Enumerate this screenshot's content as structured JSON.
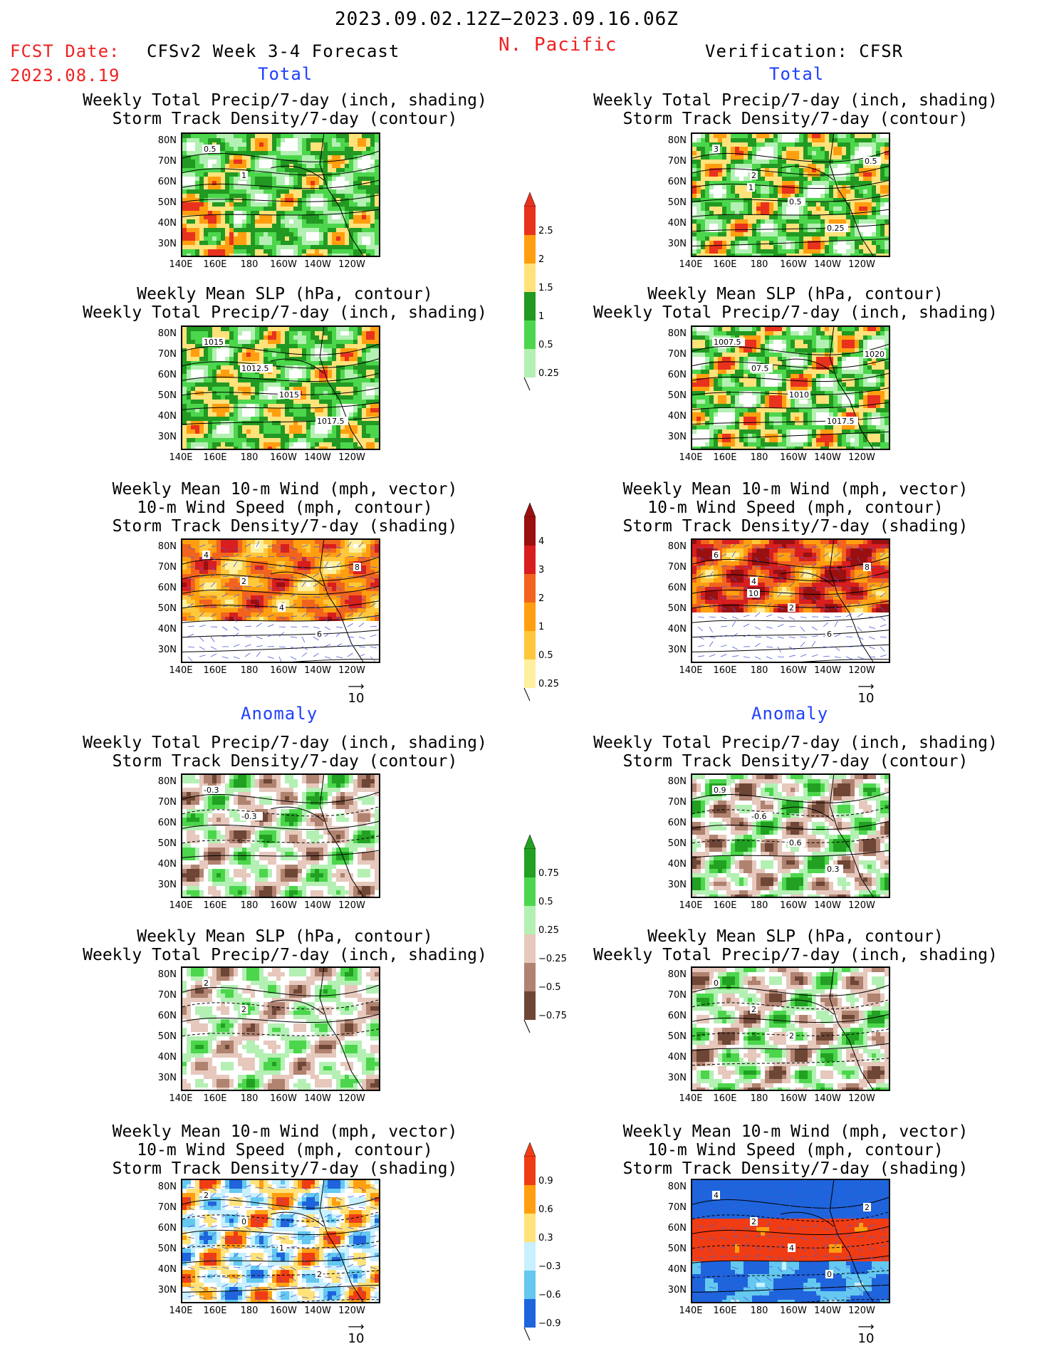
{
  "header": {
    "date_range": "2023.09.02.12Z−2023.09.16.06Z",
    "region": "N. Pacific",
    "fcst_label": "FCST Date:",
    "fcst_date": "2023.08.19",
    "model": "CFSv2 Week 3-4 Forecast",
    "verification": "Verification: CFSR"
  },
  "sections": {
    "total": "Total",
    "anomaly": "Anomaly"
  },
  "titles": {
    "precip_track": [
      "Weekly Total Precip/7-day (inch, shading)",
      "Storm Track Density/7-day (contour)"
    ],
    "slp_precip": [
      "Weekly Mean SLP (hPa, contour)",
      "Weekly Total Precip/7-day (inch, shading)"
    ],
    "wind_track": [
      "Weekly Mean 10-m Wind (mph, vector)",
      "10-m Wind Speed (mph, contour)",
      "Storm Track Density/7-day (shading)"
    ]
  },
  "axes": {
    "lat": [
      "80N",
      "70N",
      "60N",
      "50N",
      "40N",
      "30N"
    ],
    "lon": [
      "140E",
      "160E",
      "180",
      "160W",
      "140W",
      "120W"
    ]
  },
  "vector_scale": "10",
  "colorbars": {
    "precip_total": {
      "labels": [
        "2.5",
        "2",
        "1.5",
        "1",
        "0.5",
        "0.25"
      ],
      "colors": [
        "#e8321e",
        "#ff9f10",
        "#ffe27a",
        "#229922",
        "#4cd64c",
        "#b4f0b4"
      ]
    },
    "track_total": {
      "labels": [
        "4",
        "3",
        "2",
        "1",
        "0.5",
        "0.25"
      ],
      "colors": [
        "#9a1010",
        "#d81e1e",
        "#f2641e",
        "#ff9f10",
        "#ffc83c",
        "#fff0a0"
      ]
    },
    "precip_anom": {
      "labels": [
        "0.75",
        "0.5",
        "0.25",
        "−0.25",
        "−0.5",
        "−0.75"
      ],
      "colors": [
        "#22a022",
        "#4cd64c",
        "#b4f0b4",
        "#e6c8bc",
        "#b08270",
        "#6e4636"
      ]
    },
    "track_anom": {
      "labels": [
        "0.9",
        "0.6",
        "0.3",
        "−0.3",
        "−0.6",
        "−0.9"
      ],
      "colors": [
        "#f03c14",
        "#ff9f10",
        "#ffe27a",
        "#c8f0ff",
        "#64c8f0",
        "#1e64dc"
      ]
    }
  },
  "panels": {
    "fcst_total_precip": {
      "contour_labels": [
        "0.5",
        "1"
      ]
    },
    "obs_total_precip": {
      "contour_labels": [
        "3",
        "2",
        "0.5",
        "0.25",
        "0.5",
        "1"
      ]
    },
    "fcst_total_slp": {
      "contour_labels": [
        "1015",
        "1012.5",
        "1015",
        "1017.5"
      ]
    },
    "obs_total_slp": {
      "contour_labels": [
        "1007.5",
        "07.5",
        "1010",
        "1017.5",
        "1020"
      ]
    },
    "fcst_total_wind": {
      "contour_labels": [
        "4",
        "2",
        "4",
        "6",
        "8"
      ]
    },
    "obs_total_wind": {
      "contour_labels": [
        "6",
        "4",
        "2",
        "6",
        "8",
        "10"
      ]
    },
    "fcst_anom_precip": {
      "contour_labels": [
        "-0.3",
        "-0.3"
      ]
    },
    "obs_anom_precip": {
      "contour_labels": [
        "0.9",
        "-0.6",
        "0.6",
        "0.3"
      ]
    },
    "fcst_anom_slp": {
      "contour_labels": [
        "2",
        "2"
      ]
    },
    "obs_anom_slp": {
      "contour_labels": [
        "0",
        "2",
        "2"
      ]
    },
    "fcst_anom_wind": {
      "contour_labels": [
        "2",
        "0",
        "1",
        "2"
      ]
    },
    "obs_anom_wind": {
      "contour_labels": [
        "4",
        "2",
        "4",
        "0",
        "2"
      ]
    }
  },
  "chart_data": [
    {
      "type": "heatmap",
      "title": "Weekly Total Precip/7-day (inch, shading)",
      "subtitle": "Storm Track Density/7-day (contour)",
      "column": "CFSv2 Week 3-4 Forecast",
      "section": "Total"
    },
    {
      "type": "heatmap",
      "title": "Weekly Total Precip/7-day (inch, shading)",
      "subtitle": "Storm Track Density/7-day (contour)",
      "column": "Verification: CFSR",
      "section": "Total"
    },
    {
      "type": "heatmap",
      "title": "Weekly Mean SLP (hPa, contour)",
      "subtitle": "Weekly Total Precip/7-day (inch, shading)",
      "column": "CFSv2 Week 3-4 Forecast",
      "section": "Total"
    },
    {
      "type": "heatmap",
      "title": "Weekly Mean SLP (hPa, contour)",
      "subtitle": "Weekly Total Precip/7-day (inch, shading)",
      "column": "Verification: CFSR",
      "section": "Total"
    },
    {
      "type": "heatmap",
      "title": "Weekly Mean 10-m Wind (mph, vector)",
      "subtitle": "Storm Track Density/7-day (shading)",
      "column": "CFSv2 Week 3-4 Forecast",
      "section": "Total"
    },
    {
      "type": "heatmap",
      "title": "Weekly Mean 10-m Wind (mph, vector)",
      "subtitle": "Storm Track Density/7-day (shading)",
      "column": "Verification: CFSR",
      "section": "Total"
    },
    {
      "type": "heatmap",
      "title": "Weekly Total Precip/7-day (inch, shading)",
      "subtitle": "Storm Track Density/7-day (contour)",
      "column": "CFSv2 Week 3-4 Forecast",
      "section": "Anomaly"
    },
    {
      "type": "heatmap",
      "title": "Weekly Total Precip/7-day (inch, shading)",
      "subtitle": "Storm Track Density/7-day (contour)",
      "column": "Verification: CFSR",
      "section": "Anomaly"
    },
    {
      "type": "heatmap",
      "title": "Weekly Mean SLP (hPa, contour)",
      "subtitle": "Weekly Total Precip/7-day (inch, shading)",
      "column": "CFSv2 Week 3-4 Forecast",
      "section": "Anomaly"
    },
    {
      "type": "heatmap",
      "title": "Weekly Mean SLP (hPa, contour)",
      "subtitle": "Weekly Total Precip/7-day (inch, shading)",
      "column": "Verification: CFSR",
      "section": "Anomaly"
    },
    {
      "type": "heatmap",
      "title": "Weekly Mean 10-m Wind (mph, vector)",
      "subtitle": "Storm Track Density/7-day (shading)",
      "column": "CFSv2 Week 3-4 Forecast",
      "section": "Anomaly"
    },
    {
      "type": "heatmap",
      "title": "Weekly Mean 10-m Wind (mph, vector)",
      "subtitle": "Storm Track Density/7-day (shading)",
      "column": "Verification: CFSR",
      "section": "Anomaly"
    }
  ]
}
